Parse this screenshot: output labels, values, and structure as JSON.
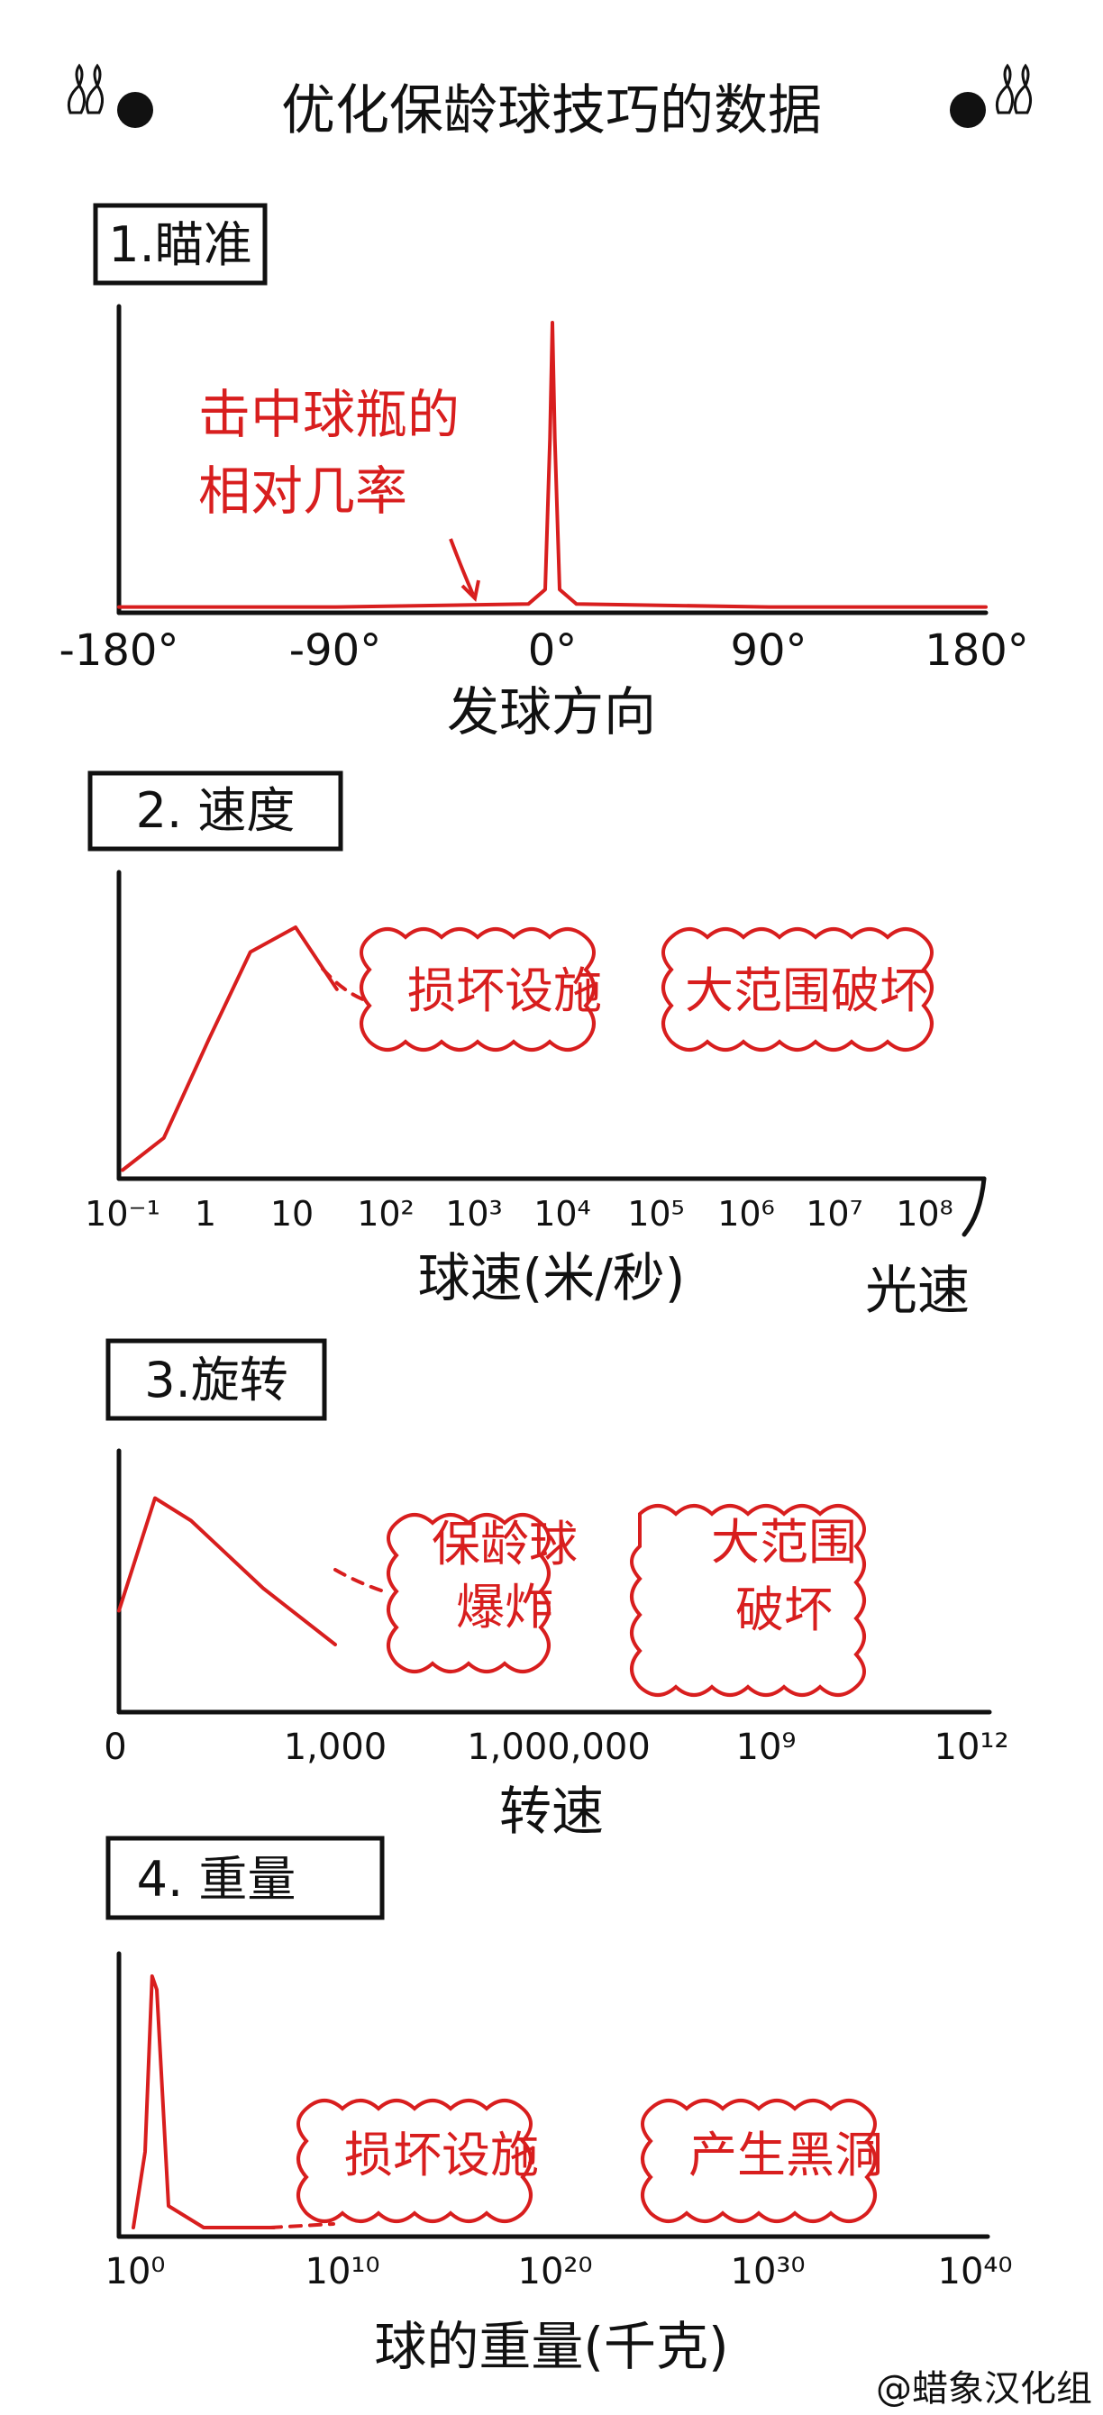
{
  "title": "优化保龄球技巧的数据",
  "credit": "@蜡象汉化组",
  "chart_data": [
    {
      "type": "line",
      "title": "1.瞄准",
      "xlabel": "发球方向",
      "ylabel": "",
      "x_ticks": [
        "-180°",
        "-90°",
        "0°",
        "90°",
        "180°"
      ],
      "xlim": [
        -180,
        180
      ],
      "series": [
        {
          "x": [
            -180,
            -90,
            -10,
            -3,
            -1,
            0,
            1,
            3,
            10,
            90,
            180
          ],
          "y": [
            0.02,
            0.02,
            0.03,
            0.08,
            0.6,
            1.0,
            0.6,
            0.08,
            0.03,
            0.02,
            0.02
          ]
        }
      ],
      "annotation": {
        "line1": "击中球瓶的",
        "line2": "相对几率"
      }
    },
    {
      "type": "line",
      "title": "2. 速度",
      "xlabel": "球速(米/秒)",
      "x_ticks": [
        "10⁻¹",
        "1",
        "10",
        "10²",
        "10³",
        "10⁴",
        "10⁵",
        "10⁶",
        "10⁷",
        "10⁸"
      ],
      "x_end_label": "光速",
      "xscale": "log",
      "series": [
        {
          "x": [
            0.1,
            0.3,
            1,
            3,
            10,
            30
          ],
          "y": [
            0.02,
            0.15,
            0.55,
            0.9,
            1.0,
            0.75
          ]
        }
      ],
      "regions": [
        "损坏设施",
        "大范围破坏"
      ]
    },
    {
      "type": "line",
      "title": "3.旋转",
      "xlabel": "转速",
      "x_ticks": [
        "0",
        "1,000",
        "1,000,000",
        "10⁹",
        "10¹²"
      ],
      "series": [
        {
          "x": [
            0,
            0.5,
            1,
            2,
            3
          ],
          "y": [
            0.45,
            0.95,
            0.85,
            0.55,
            0.3
          ]
        }
      ],
      "regions": [
        "保龄球",
        "爆炸",
        "大范围",
        "破坏"
      ]
    },
    {
      "type": "line",
      "title": "4. 重量",
      "xlabel": "球的重量(千克)",
      "x_ticks": [
        "10⁰",
        "10¹⁰",
        "10²⁰",
        "10³⁰",
        "10⁴⁰"
      ],
      "xscale": "log",
      "series": [
        {
          "x": [
            0,
            0.5,
            0.8,
            1,
            1.5,
            3,
            6
          ],
          "y": [
            0.02,
            0.3,
            0.95,
            0.9,
            0.1,
            0.02,
            0.02
          ]
        }
      ],
      "regions": [
        "损坏设施",
        "产生黑洞"
      ]
    }
  ]
}
